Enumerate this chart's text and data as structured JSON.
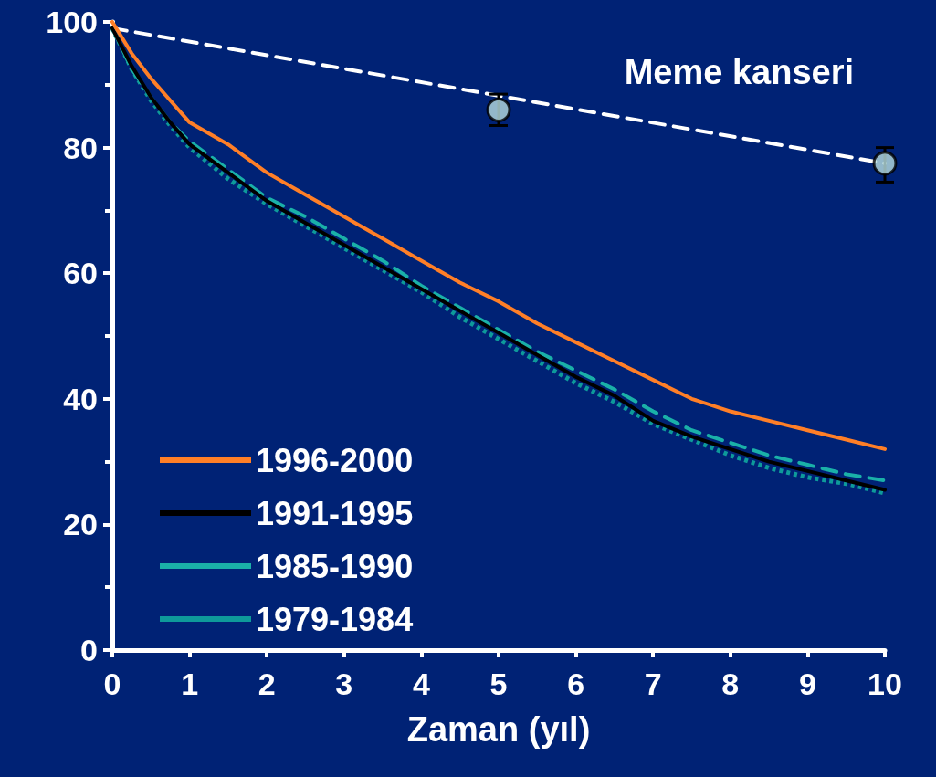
{
  "chart_data": {
    "type": "line",
    "xlabel": "Zaman (yıl)",
    "x": [
      0,
      0.25,
      0.5,
      0.75,
      1,
      1.5,
      2,
      2.5,
      3,
      3.5,
      4,
      4.5,
      5,
      5.5,
      6,
      6.5,
      7,
      7.5,
      8,
      8.5,
      9,
      9.5,
      10
    ],
    "series": [
      {
        "name": "1996-2000",
        "color": "#ff7f27",
        "line_style": "solid",
        "values": [
          100,
          95,
          91,
          87.5,
          84,
          80.5,
          76,
          72.5,
          69,
          65.5,
          62,
          58.5,
          55.5,
          52,
          49,
          46,
          43,
          40,
          38,
          36.5,
          35,
          33.5,
          32
        ]
      },
      {
        "name": "1991-1995",
        "color": "#000000",
        "line_style": "solid",
        "values": [
          99,
          93,
          88,
          84,
          80.5,
          76,
          71.5,
          68,
          64.5,
          61,
          57.5,
          54,
          50.5,
          47,
          43.5,
          40.5,
          36.5,
          34,
          32,
          30,
          28.5,
          27,
          25.5
        ]
      },
      {
        "name": "1985-1990",
        "color": "#1ab0a8",
        "line_style": "dashed",
        "values": [
          99,
          92.5,
          88,
          84,
          81,
          76.5,
          72,
          69,
          65.5,
          62,
          58,
          54.5,
          51,
          47.5,
          44.5,
          41.5,
          38,
          35,
          33,
          31,
          29.5,
          28,
          27
        ]
      },
      {
        "name": "1979-1984",
        "color": "#0e9a9a",
        "line_style": "dotted",
        "values": [
          99,
          92.5,
          87.5,
          83.5,
          80,
          75,
          71,
          67.5,
          64,
          60.5,
          57,
          53,
          49.5,
          46,
          42.5,
          39.5,
          36,
          33.5,
          31,
          29,
          27.5,
          26.5,
          25
        ]
      },
      {
        "color": "#ffffff",
        "line_style": "dashed",
        "x": [
          0,
          10
        ],
        "values": [
          99,
          77.5
        ]
      },
      {
        "type": "scatter",
        "marker": "circle",
        "color": "#b8dfe0",
        "x": [
          5,
          10
        ],
        "values": [
          86,
          77.5
        ],
        "errors": [
          [
            83.5,
            88.5
          ],
          [
            74.5,
            80
          ]
        ]
      }
    ],
    "xlim": [
      0,
      10
    ],
    "xticks": [
      0,
      1,
      2,
      3,
      4,
      5,
      6,
      7,
      8,
      9,
      10
    ],
    "ylim": [
      0,
      100
    ],
    "yticks": [
      0,
      20,
      40,
      60,
      80,
      100
    ],
    "grid": false,
    "legend": "bottom left",
    "marker": "none",
    "annotations": [
      "Meme kanseri"
    ]
  }
}
